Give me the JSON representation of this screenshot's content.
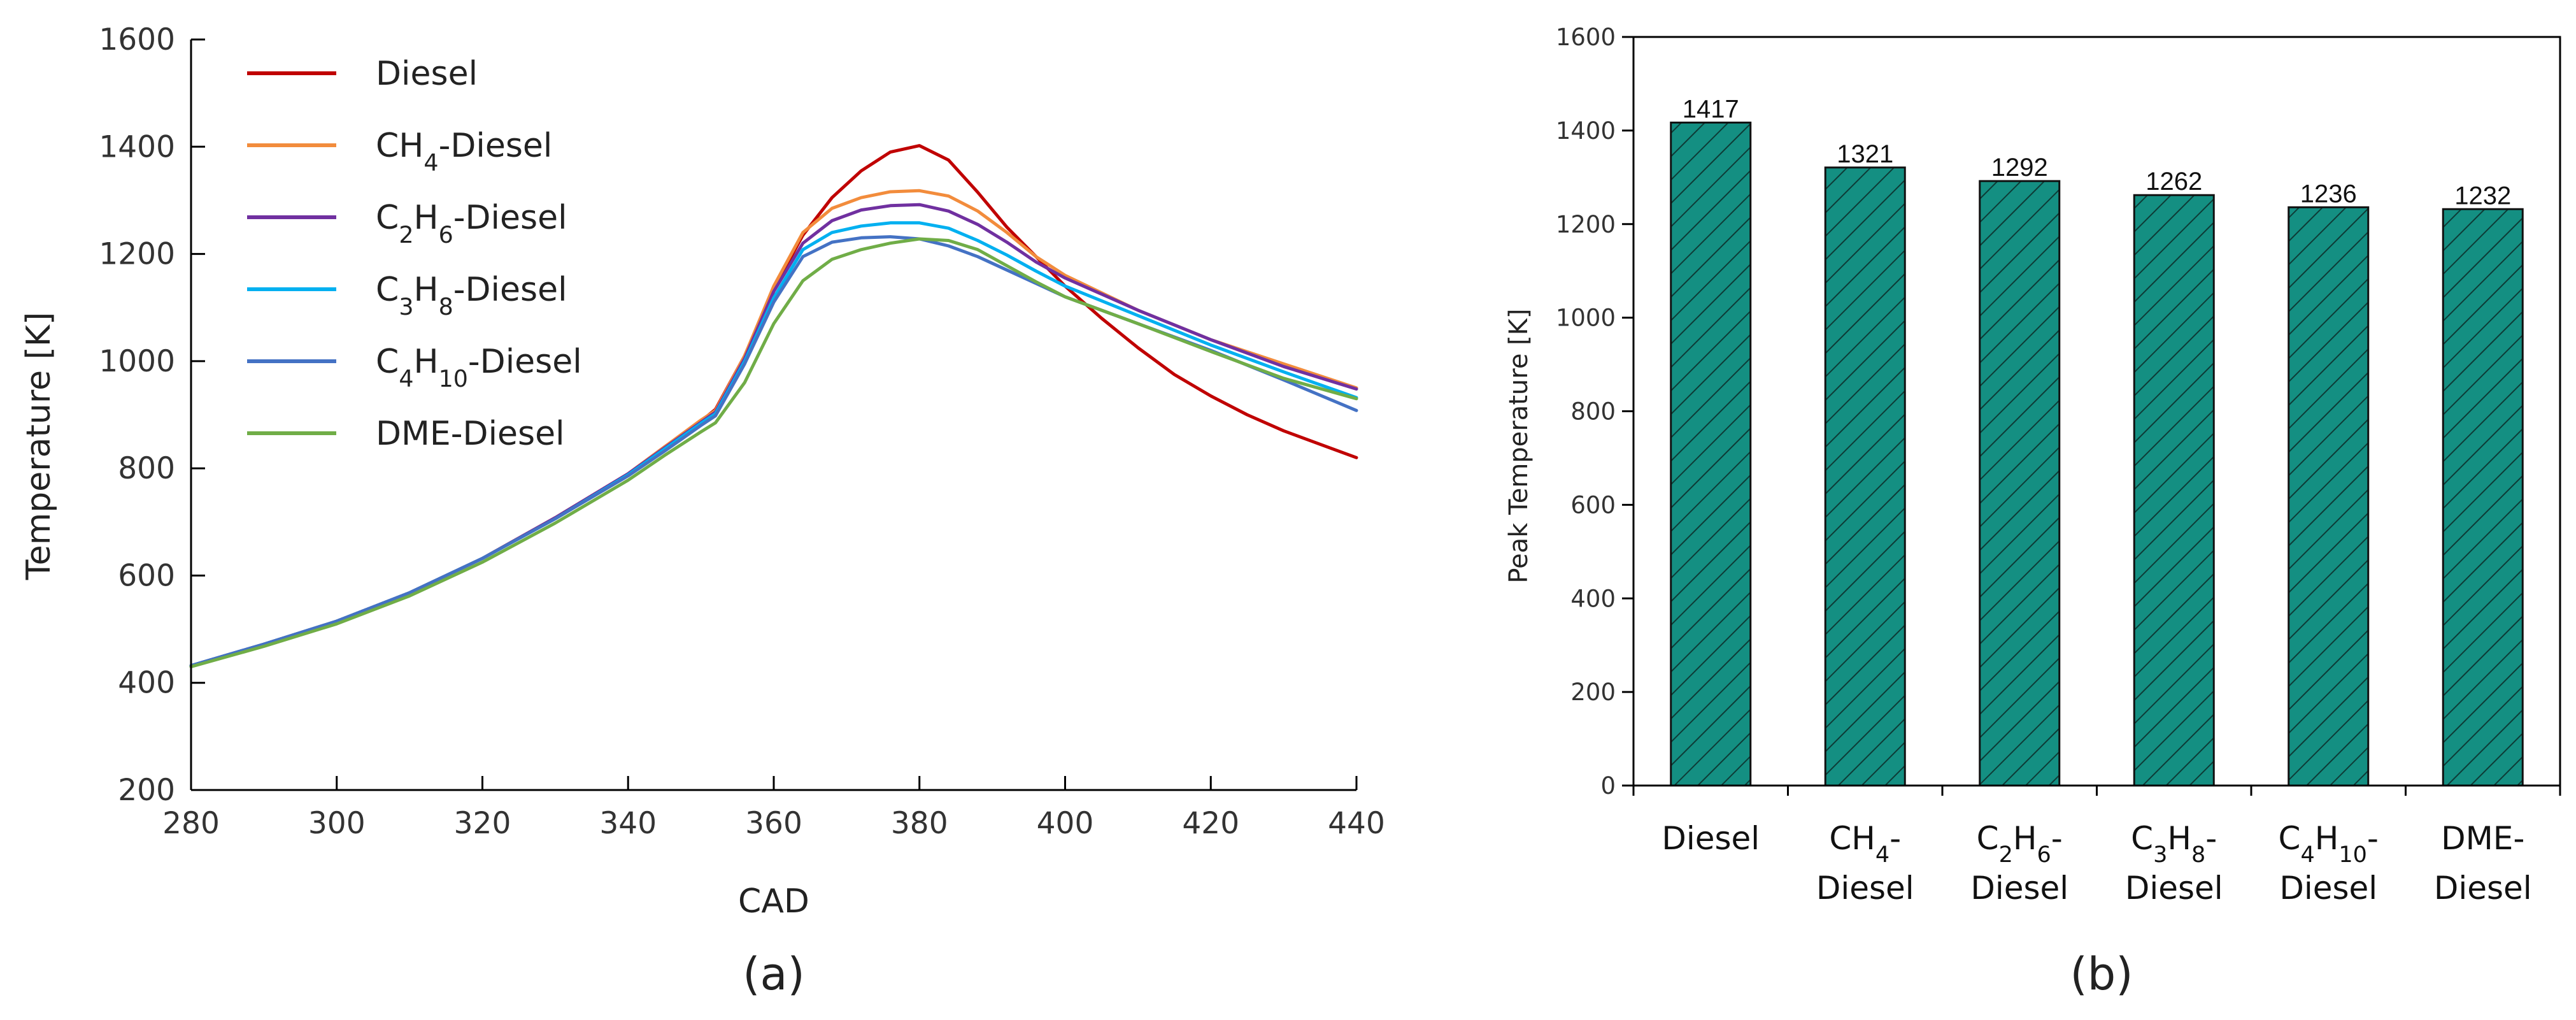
{
  "chart_data": [
    {
      "type": "line",
      "panel_label": "(a)",
      "xlabel": "CAD",
      "ylabel": "Temperature [K]",
      "xlim": [
        280,
        440
      ],
      "ylim": [
        200,
        1600
      ],
      "xticks": [
        280,
        300,
        320,
        340,
        360,
        380,
        400,
        420,
        440
      ],
      "yticks": [
        200,
        400,
        600,
        800,
        1000,
        1200,
        1400,
        1600
      ],
      "legend_position": "top-left",
      "series": [
        {
          "name": "Diesel",
          "label_parts": [
            [
              "Diesel",
              ""
            ]
          ],
          "color": "#c00000",
          "x": [
            280,
            290,
            300,
            310,
            320,
            330,
            340,
            345,
            350,
            352,
            356,
            360,
            364,
            368,
            372,
            376,
            380,
            384,
            388,
            392,
            396,
            400,
            405,
            410,
            415,
            420,
            425,
            430,
            435,
            440
          ],
          "y": [
            432,
            472,
            515,
            568,
            632,
            708,
            790,
            840,
            888,
            910,
            1010,
            1135,
            1235,
            1305,
            1355,
            1390,
            1402,
            1375,
            1315,
            1250,
            1195,
            1140,
            1080,
            1025,
            975,
            935,
            900,
            870,
            845,
            820
          ]
        },
        {
          "name": "CH4-Diesel",
          "label_parts": [
            [
              "CH",
              ""
            ],
            [
              "4",
              "sub"
            ],
            [
              "-Diesel",
              ""
            ]
          ],
          "color": "#f28c3c",
          "x": [
            280,
            290,
            300,
            310,
            320,
            330,
            340,
            345,
            350,
            352,
            356,
            360,
            364,
            368,
            372,
            376,
            380,
            384,
            388,
            392,
            396,
            400,
            410,
            420,
            430,
            440
          ],
          "y": [
            432,
            472,
            515,
            568,
            632,
            708,
            790,
            840,
            890,
            908,
            1010,
            1140,
            1240,
            1285,
            1305,
            1316,
            1318,
            1308,
            1280,
            1240,
            1195,
            1160,
            1095,
            1040,
            995,
            950
          ]
        },
        {
          "name": "C2H6-Diesel",
          "label_parts": [
            [
              "C",
              ""
            ],
            [
              "2",
              "sub"
            ],
            [
              "H",
              ""
            ],
            [
              "6",
              "sub"
            ],
            [
              "-Diesel",
              ""
            ]
          ],
          "color": "#7030a0",
          "x": [
            280,
            290,
            300,
            310,
            320,
            330,
            340,
            345,
            350,
            352,
            356,
            360,
            364,
            368,
            372,
            376,
            380,
            384,
            388,
            392,
            396,
            400,
            410,
            420,
            430,
            440
          ],
          "y": [
            432,
            472,
            515,
            568,
            632,
            708,
            790,
            838,
            886,
            905,
            1005,
            1130,
            1220,
            1262,
            1282,
            1290,
            1292,
            1280,
            1255,
            1222,
            1185,
            1155,
            1095,
            1040,
            990,
            948
          ]
        },
        {
          "name": "C3H8-Diesel",
          "label_parts": [
            [
              "C",
              ""
            ],
            [
              "3",
              "sub"
            ],
            [
              "H",
              ""
            ],
            [
              "8",
              "sub"
            ],
            [
              "-Diesel",
              ""
            ]
          ],
          "color": "#00b0f0",
          "x": [
            280,
            290,
            300,
            310,
            320,
            330,
            340,
            345,
            350,
            352,
            356,
            360,
            364,
            368,
            372,
            376,
            380,
            384,
            388,
            392,
            396,
            400,
            410,
            420,
            430,
            440
          ],
          "y": [
            432,
            472,
            515,
            568,
            632,
            706,
            788,
            836,
            884,
            902,
            1000,
            1118,
            1208,
            1240,
            1252,
            1258,
            1258,
            1248,
            1225,
            1198,
            1168,
            1140,
            1085,
            1030,
            980,
            932
          ]
        },
        {
          "name": "C4H10-Diesel",
          "label_parts": [
            [
              "C",
              ""
            ],
            [
              "4",
              "sub"
            ],
            [
              "H",
              ""
            ],
            [
              "10",
              "sub"
            ],
            [
              "-Diesel",
              ""
            ]
          ],
          "color": "#4472c4",
          "x": [
            280,
            290,
            300,
            310,
            320,
            330,
            340,
            345,
            350,
            352,
            356,
            360,
            364,
            368,
            372,
            376,
            380,
            384,
            388,
            392,
            396,
            400,
            410,
            420,
            430,
            440
          ],
          "y": [
            432,
            472,
            515,
            568,
            632,
            706,
            786,
            832,
            880,
            898,
            995,
            1110,
            1195,
            1222,
            1230,
            1232,
            1228,
            1215,
            1195,
            1170,
            1145,
            1120,
            1070,
            1020,
            965,
            908
          ]
        },
        {
          "name": "DME-Diesel",
          "label_parts": [
            [
              "DME-Diesel",
              ""
            ]
          ],
          "color": "#70ad47",
          "x": [
            280,
            290,
            300,
            310,
            320,
            330,
            340,
            345,
            350,
            352,
            356,
            360,
            364,
            368,
            372,
            376,
            380,
            384,
            388,
            392,
            396,
            400,
            410,
            420,
            430,
            440
          ],
          "y": [
            430,
            468,
            510,
            562,
            625,
            698,
            778,
            824,
            868,
            885,
            960,
            1070,
            1150,
            1190,
            1208,
            1220,
            1228,
            1225,
            1208,
            1178,
            1148,
            1120,
            1070,
            1018,
            968,
            930
          ]
        }
      ]
    },
    {
      "type": "bar",
      "panel_label": "(b)",
      "xlabel": "",
      "ylabel": "Peak Temperature [K]",
      "ylim": [
        0,
        1600
      ],
      "yticks": [
        0,
        200,
        400,
        600,
        800,
        1000,
        1200,
        1400,
        1600
      ],
      "bar_color": "#148f82",
      "hatch": "diagonal",
      "categories": [
        "Diesel",
        "CH4-Diesel",
        "C2H6-Diesel",
        "C3H8-Diesel",
        "C4H10-Diesel",
        "DME-Diesel"
      ],
      "category_lines": [
        [
          [
            [
              "Diesel",
              ""
            ]
          ]
        ],
        [
          [
            [
              "CH",
              ""
            ],
            [
              "4",
              "sub"
            ],
            [
              "-",
              ""
            ]
          ],
          [
            [
              "Diesel",
              ""
            ]
          ]
        ],
        [
          [
            [
              "C",
              ""
            ],
            [
              "2",
              "sub"
            ],
            [
              "H",
              ""
            ],
            [
              "6",
              "sub"
            ],
            [
              "-",
              ""
            ]
          ],
          [
            [
              "Diesel",
              ""
            ]
          ]
        ],
        [
          [
            [
              "C",
              ""
            ],
            [
              "3",
              "sub"
            ],
            [
              "H",
              ""
            ],
            [
              "8",
              "sub"
            ],
            [
              "-",
              ""
            ]
          ],
          [
            [
              "Diesel",
              ""
            ]
          ]
        ],
        [
          [
            [
              "C",
              ""
            ],
            [
              "4",
              "sub"
            ],
            [
              "H",
              ""
            ],
            [
              "10",
              "sub"
            ],
            [
              "-",
              ""
            ]
          ],
          [
            [
              "Diesel",
              ""
            ]
          ]
        ],
        [
          [
            [
              "DME-",
              ""
            ]
          ],
          [
            [
              "Diesel",
              ""
            ]
          ]
        ]
      ],
      "values": [
        1417,
        1321,
        1292,
        1262,
        1236,
        1232
      ],
      "data_labels": [
        "1417",
        "1321",
        "1292",
        "1262",
        "1236",
        "1232"
      ]
    }
  ]
}
